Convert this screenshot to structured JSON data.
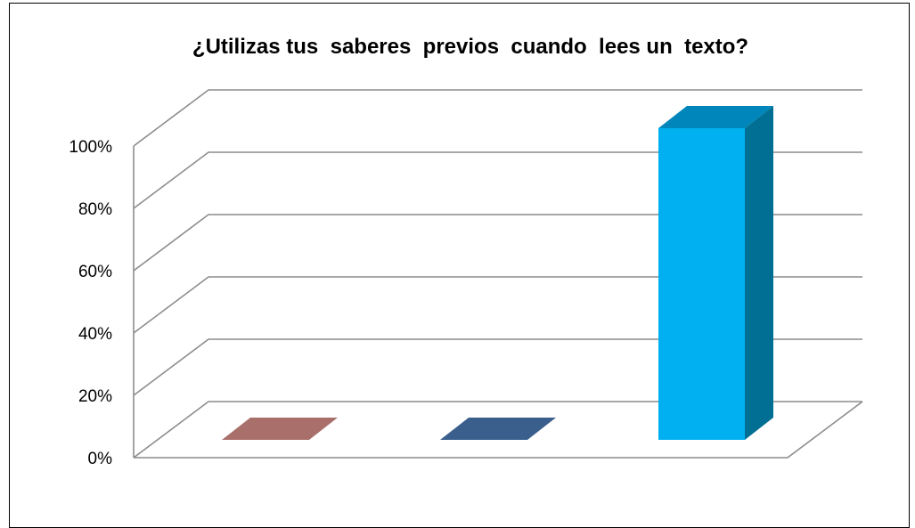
{
  "chart_data": {
    "type": "bar",
    "title": "¿Utilizas tus  saberes  previos  cuando  lees un  texto?",
    "xlabel": "",
    "ylabel": "",
    "categories": [
      "",
      "",
      ""
    ],
    "values": [
      0,
      0,
      100
    ],
    "ylim": [
      0,
      100
    ],
    "y_ticks": [
      "0%",
      "20%",
      "40%",
      "60%",
      "80%",
      "100%"
    ],
    "grid": true,
    "legend": "none",
    "three_d": true,
    "colors": [
      "#a9706b",
      "#3a5f8c",
      "#00b0f0"
    ],
    "side_colors": [
      "#7e4f4b",
      "#27436a",
      "#006f93"
    ],
    "top_colors": [
      "#a9706b",
      "#3a5f8c",
      "#0086ba"
    ],
    "gridline_color": "#8c8c8c"
  }
}
